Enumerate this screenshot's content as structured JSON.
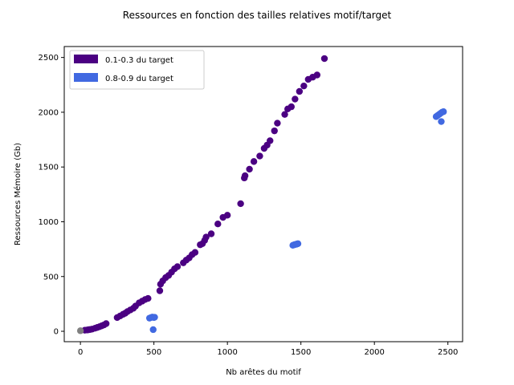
{
  "chart_data": {
    "type": "scatter",
    "title": "Ressources en fonction des tailles relatives motif/target",
    "xlabel": "Nb arêtes du motif",
    "ylabel": "Ressources Mémoire (Gb)",
    "xlim": [
      -110,
      2600
    ],
    "ylim": [
      -95,
      2600
    ],
    "xticks": [
      0,
      500,
      1000,
      1500,
      2000,
      2500
    ],
    "yticks": [
      0,
      500,
      1000,
      1500,
      2000,
      2500
    ],
    "grid": false,
    "legend_position": "top-left",
    "series": [
      {
        "name": "0.1-0.3 du target",
        "color": "#4b0082",
        "points": [
          [
            30,
            10
          ],
          [
            45,
            12
          ],
          [
            55,
            14
          ],
          [
            65,
            16
          ],
          [
            80,
            20
          ],
          [
            100,
            28
          ],
          [
            115,
            35
          ],
          [
            130,
            42
          ],
          [
            145,
            50
          ],
          [
            160,
            58
          ],
          [
            175,
            70
          ],
          [
            250,
            125
          ],
          [
            270,
            140
          ],
          [
            290,
            155
          ],
          [
            305,
            165
          ],
          [
            320,
            180
          ],
          [
            340,
            195
          ],
          [
            360,
            210
          ],
          [
            375,
            230
          ],
          [
            400,
            260
          ],
          [
            420,
            275
          ],
          [
            440,
            290
          ],
          [
            460,
            300
          ],
          [
            540,
            370
          ],
          [
            545,
            430
          ],
          [
            560,
            460
          ],
          [
            580,
            490
          ],
          [
            600,
            510
          ],
          [
            620,
            540
          ],
          [
            640,
            570
          ],
          [
            660,
            590
          ],
          [
            700,
            625
          ],
          [
            720,
            650
          ],
          [
            740,
            670
          ],
          [
            760,
            700
          ],
          [
            780,
            720
          ],
          [
            815,
            790
          ],
          [
            830,
            800
          ],
          [
            845,
            830
          ],
          [
            855,
            860
          ],
          [
            890,
            890
          ],
          [
            935,
            980
          ],
          [
            970,
            1040
          ],
          [
            1000,
            1060
          ],
          [
            1090,
            1165
          ],
          [
            1115,
            1400
          ],
          [
            1120,
            1420
          ],
          [
            1150,
            1480
          ],
          [
            1180,
            1550
          ],
          [
            1220,
            1600
          ],
          [
            1250,
            1670
          ],
          [
            1270,
            1700
          ],
          [
            1290,
            1740
          ],
          [
            1320,
            1830
          ],
          [
            1340,
            1900
          ],
          [
            1390,
            1980
          ],
          [
            1410,
            2030
          ],
          [
            1435,
            2050
          ],
          [
            1460,
            2120
          ],
          [
            1490,
            2190
          ],
          [
            1520,
            2240
          ],
          [
            1550,
            2300
          ],
          [
            1580,
            2320
          ],
          [
            1610,
            2340
          ],
          [
            1660,
            2490
          ]
        ]
      },
      {
        "name": "0.8-0.9 du target",
        "color": "#4169e1",
        "points": [
          [
            470,
            120
          ],
          [
            480,
            125
          ],
          [
            490,
            130
          ],
          [
            500,
            125
          ],
          [
            505,
            128
          ],
          [
            495,
            15
          ],
          [
            1445,
            785
          ],
          [
            1455,
            790
          ],
          [
            1460,
            792
          ],
          [
            1470,
            795
          ],
          [
            1480,
            800
          ],
          [
            1475,
            798
          ],
          [
            2420,
            1960
          ],
          [
            2430,
            1970
          ],
          [
            2440,
            1980
          ],
          [
            2450,
            1990
          ],
          [
            2460,
            2000
          ],
          [
            2470,
            2005
          ],
          [
            2455,
            1915
          ]
        ]
      },
      {
        "name": "",
        "color": "#808080",
        "points": [
          [
            0,
            5
          ]
        ]
      }
    ]
  }
}
